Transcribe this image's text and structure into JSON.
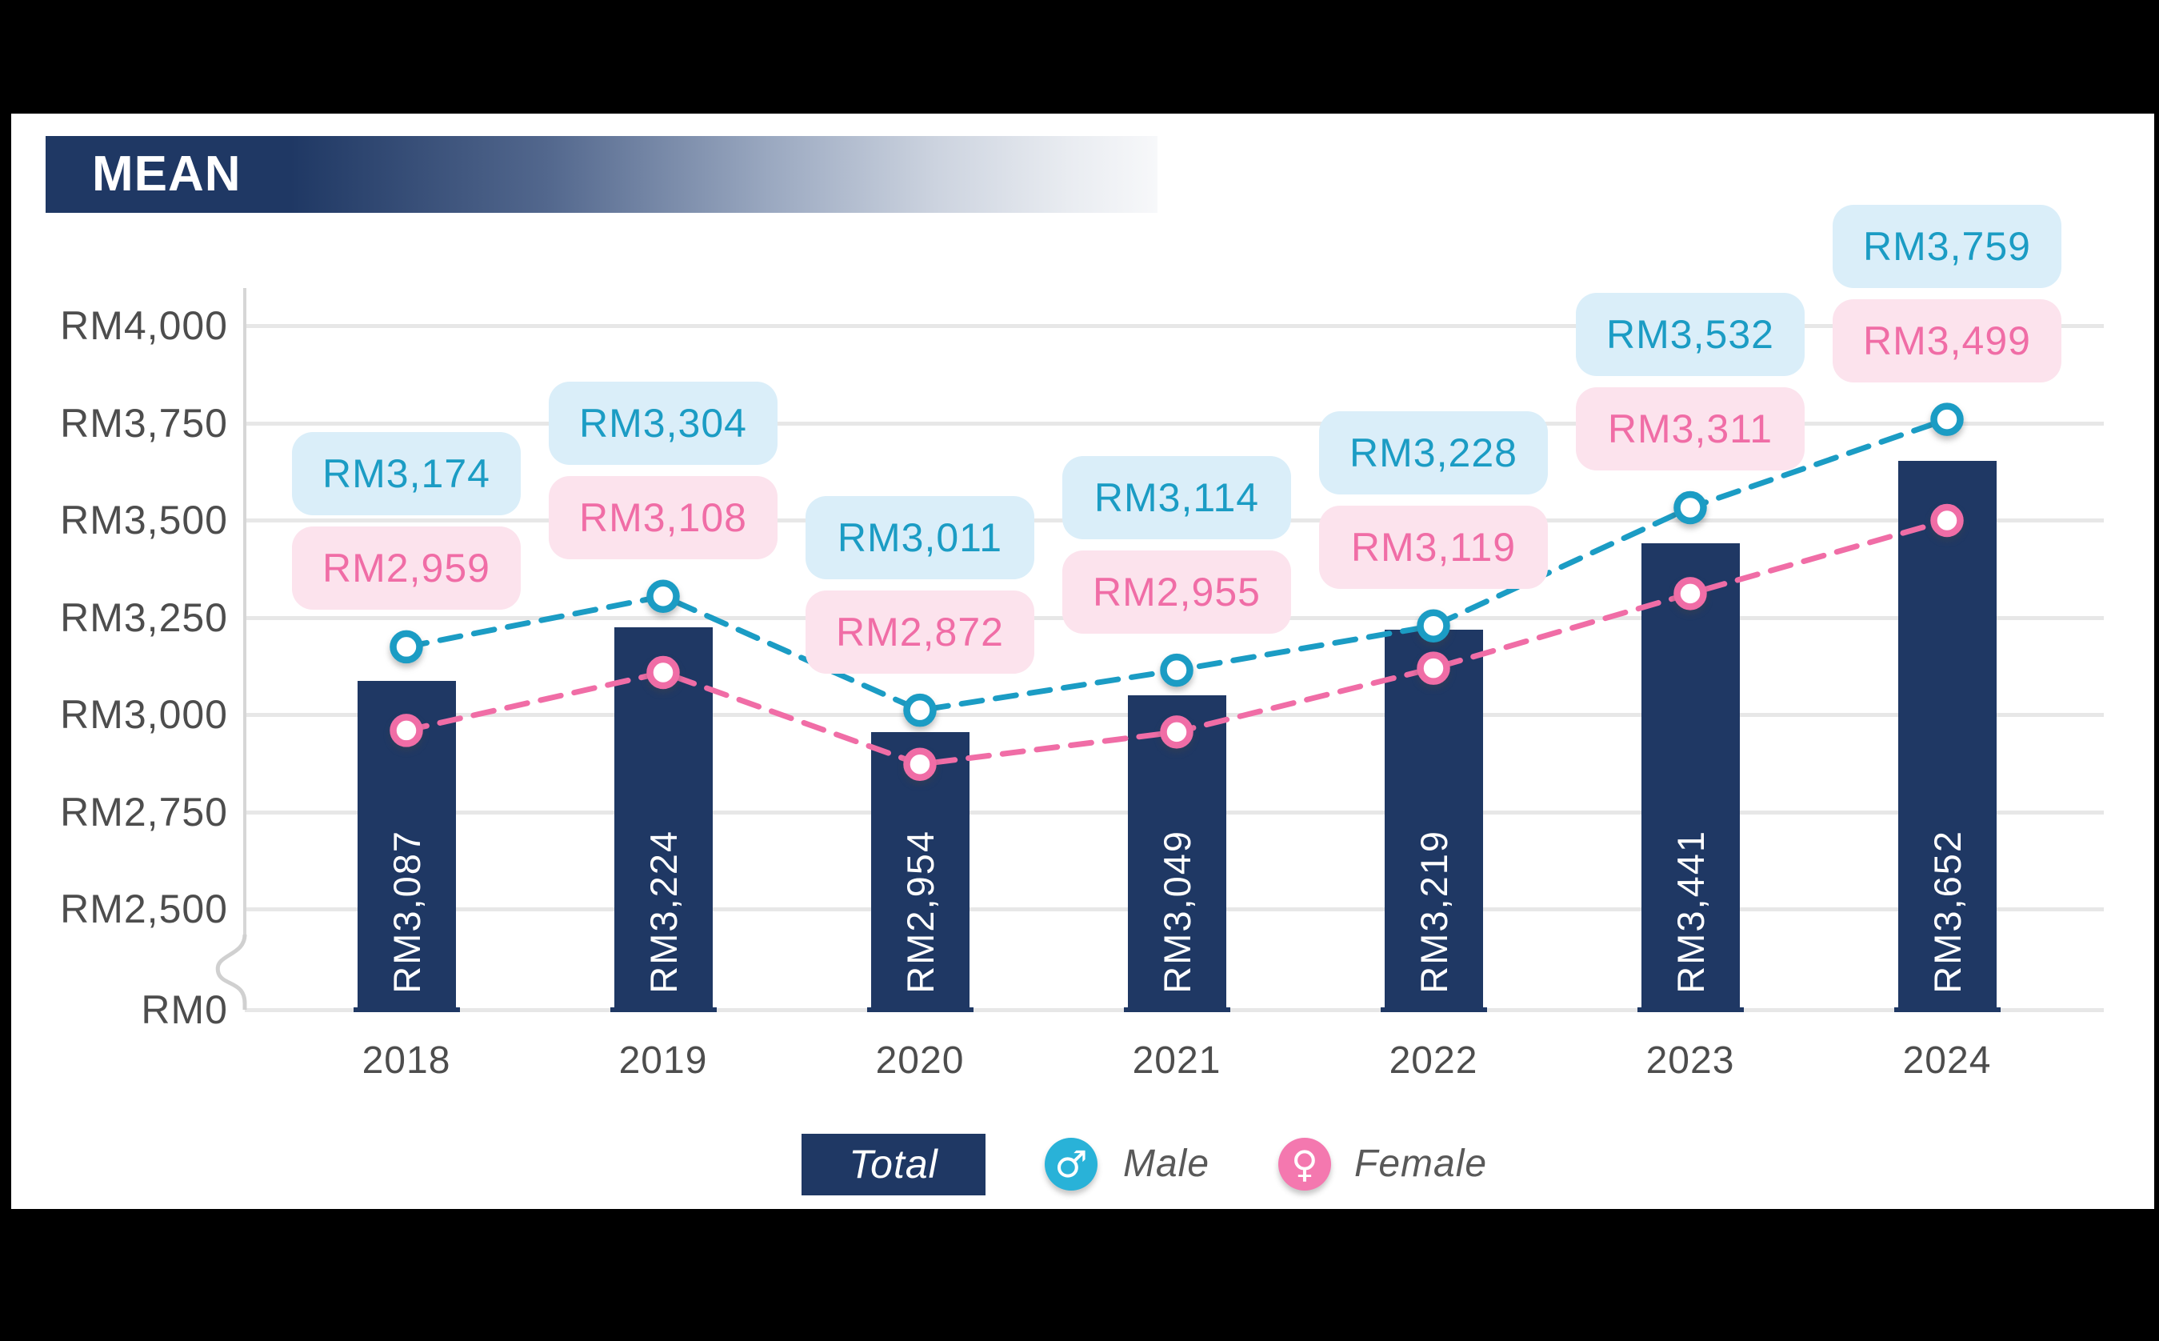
{
  "chart_data": {
    "type": "bar+line",
    "title": "MEAN",
    "currency": "RM",
    "categories": [
      "2018",
      "2019",
      "2020",
      "2021",
      "2022",
      "2023",
      "2024"
    ],
    "series": [
      {
        "name": "Total",
        "type": "bar",
        "values": [
          3087,
          3224,
          2954,
          3049,
          3219,
          3441,
          3652
        ],
        "labels": [
          "RM3,087",
          "RM3,224",
          "RM2,954",
          "RM3,049",
          "RM3,219",
          "RM3,441",
          "RM3,652"
        ]
      },
      {
        "name": "Male",
        "type": "line",
        "values": [
          3174,
          3304,
          3011,
          3114,
          3228,
          3532,
          3759
        ],
        "labels": [
          "RM3,174",
          "RM3,304",
          "RM3,011",
          "RM3,114",
          "RM3,228",
          "RM3,532",
          "RM3,759"
        ]
      },
      {
        "name": "Female",
        "type": "line",
        "values": [
          2959,
          3108,
          2872,
          2955,
          3119,
          3311,
          3499
        ],
        "labels": [
          "RM2,959",
          "RM3,108",
          "RM2,872",
          "RM2,955",
          "RM3,119",
          "RM3,311",
          "RM3,499"
        ]
      }
    ],
    "y_axis": {
      "tick_labels": [
        "RM4,000",
        "RM3,750",
        "RM3,500",
        "RM3,250",
        "RM3,000",
        "RM2,750",
        "RM2,500",
        "RM0"
      ],
      "tick_values": [
        4000,
        3750,
        3500,
        3250,
        3000,
        2750,
        2500,
        0
      ],
      "axis_break": true,
      "range_shown": [
        2500,
        4000
      ]
    },
    "x_axis": {
      "labels": [
        "2018",
        "2019",
        "2020",
        "2021",
        "2022",
        "2023",
        "2024"
      ]
    },
    "grid": true,
    "legend": {
      "position": "bottom",
      "items": [
        {
          "label": "Total",
          "swatch": "bar"
        },
        {
          "label": "Male",
          "symbol": "♂"
        },
        {
          "label": "Female",
          "symbol": "♀"
        }
      ]
    }
  },
  "colors": {
    "background": "#000000",
    "canvas": "#ffffff",
    "bar_navy": "#1f3864",
    "male_teal": "#1b9cc4",
    "female_pink": "#f06da6",
    "male_label_bg": "#daeef9",
    "female_label_bg": "#fce3ed",
    "legend_male_circle": "#29b2d8",
    "legend_female_circle": "#f478af",
    "grid": "#e7e7e7",
    "axis_text": "#4d4d4d",
    "banner_navy": "#1f3864"
  }
}
